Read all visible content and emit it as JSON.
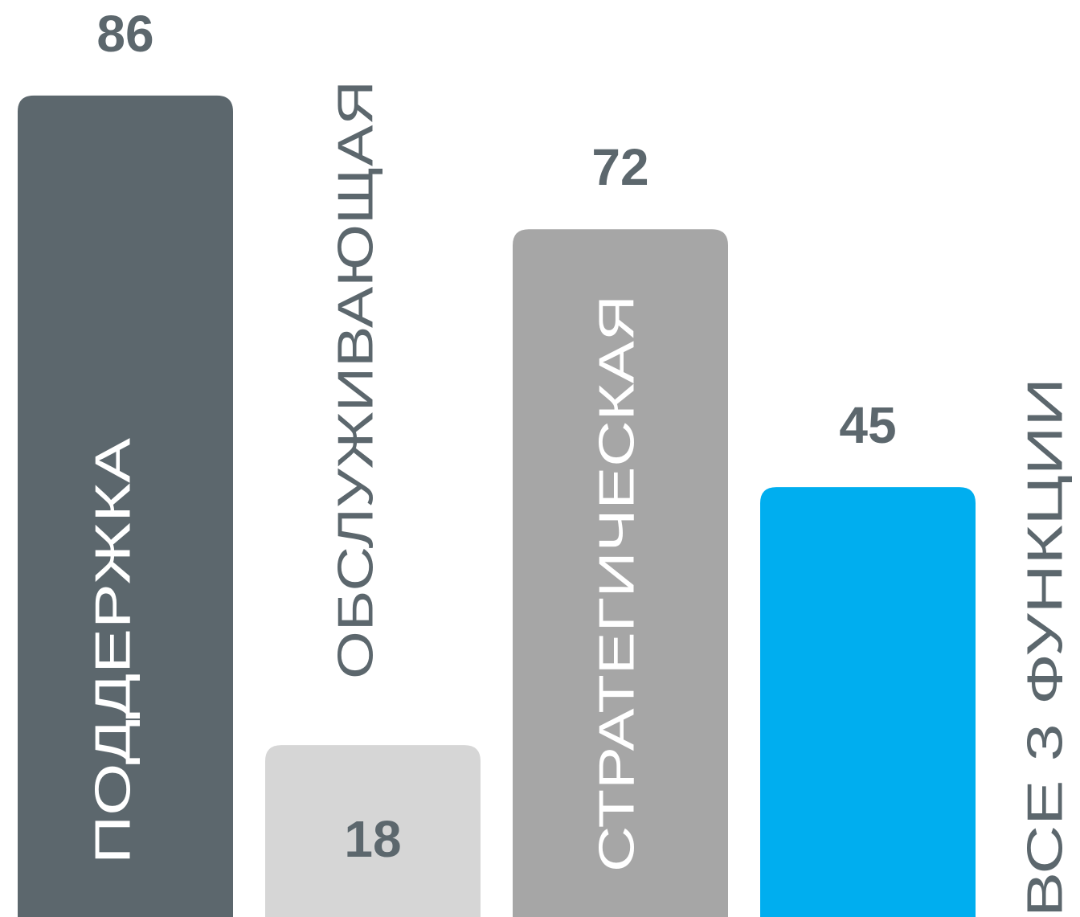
{
  "chart_data": {
    "type": "bar",
    "categories": [
      "ПОДДЕРЖКА",
      "ОБСЛУЖИВАЮЩАЯ",
      "СТРАТЕГИЧЕСКАЯ",
      "ВСЕ 3 ФУНКЦИИ"
    ],
    "values": [
      86,
      18,
      72,
      45
    ],
    "colors": [
      "#5c676d",
      "#d6d6d6",
      "#a6a6a6",
      "#00aeef"
    ],
    "ylim": [
      0,
      96
    ]
  }
}
